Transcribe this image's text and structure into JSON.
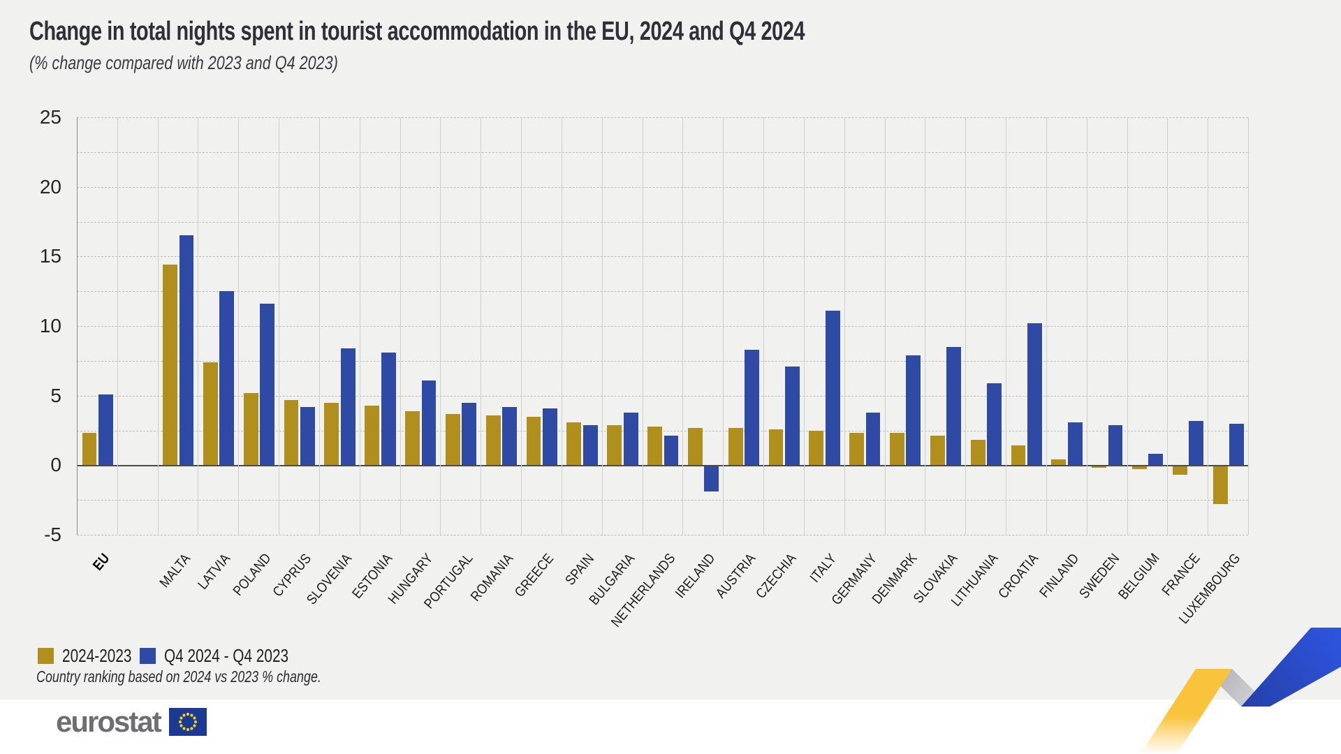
{
  "chart_data": {
    "type": "bar",
    "title": "Change in total nights spent in tourist accommodation in the EU, 2024 and Q4 2024",
    "subtitle": "(% change compared with 2023 and Q4 2023)",
    "note": "Country ranking based on 2024 vs 2023 % change.",
    "categories": [
      "EU",
      "MALTA",
      "LATVIA",
      "POLAND",
      "CYPRUS",
      "SLOVENIA",
      "ESTONIA",
      "HUNGARY",
      "PORTUGAL",
      "ROMANIA",
      "GREECE",
      "SPAIN",
      "BULGARIA",
      "NETHERLANDS",
      "IRELAND",
      "AUSTRIA",
      "CZECHIA",
      "ITALY",
      "GERMANY",
      "DENMARK",
      "SLOVAKIA",
      "LITHUANIA",
      "CROATIA",
      "FINLAND",
      "SWEDEN",
      "BELGIUM",
      "FRANCE",
      "LUXEMBOURG"
    ],
    "emphasized_category": "EU",
    "gap_after_first_category": true,
    "series": [
      {
        "name": "2024-2023",
        "color": "#B08F1C",
        "values": [
          2.3,
          14.4,
          7.4,
          5.2,
          4.7,
          4.5,
          4.3,
          3.9,
          3.7,
          3.6,
          3.5,
          3.1,
          2.9,
          2.8,
          2.7,
          2.7,
          2.6,
          2.5,
          2.3,
          2.3,
          2.1,
          1.8,
          1.4,
          0.4,
          -0.1,
          -0.2,
          -0.6,
          -2.7
        ]
      },
      {
        "name": "Q4 2024 - Q4 2023",
        "color": "#2E4AA5",
        "values": [
          5.1,
          16.5,
          12.5,
          11.6,
          4.2,
          8.4,
          8.1,
          6.1,
          4.5,
          4.2,
          4.1,
          2.9,
          3.8,
          2.1,
          -1.8,
          8.3,
          7.1,
          11.1,
          3.8,
          7.9,
          8.5,
          5.9,
          10.2,
          3.1,
          2.9,
          0.8,
          3.2,
          3.0
        ]
      }
    ],
    "ylim": [
      -5,
      25
    ],
    "yticks": [
      25,
      20,
      15,
      10,
      5,
      0,
      -5
    ],
    "grid_step": 2.5,
    "grid": true,
    "legend_position": "bottom-left",
    "xlabel": "",
    "ylabel": ""
  },
  "footer": {
    "logo_text": "eurostat"
  },
  "colors": {
    "background": "#F1F1EF",
    "footer_background": "#FFFFFF",
    "series_gold": "#B08F1C",
    "series_blue": "#2E4AA5",
    "zero_line": "#4A4A4A",
    "gridline": "#BCBCBC",
    "title_text": "#2E2F37",
    "logo_gray": "#6D6E71",
    "flag_blue": "#1C3A94",
    "flag_stars": "#F7D117",
    "zigzag_yellow": "#FAC33C",
    "zigzag_gray": "#C6C6CA",
    "zigzag_blue": "#2B4ACF"
  }
}
